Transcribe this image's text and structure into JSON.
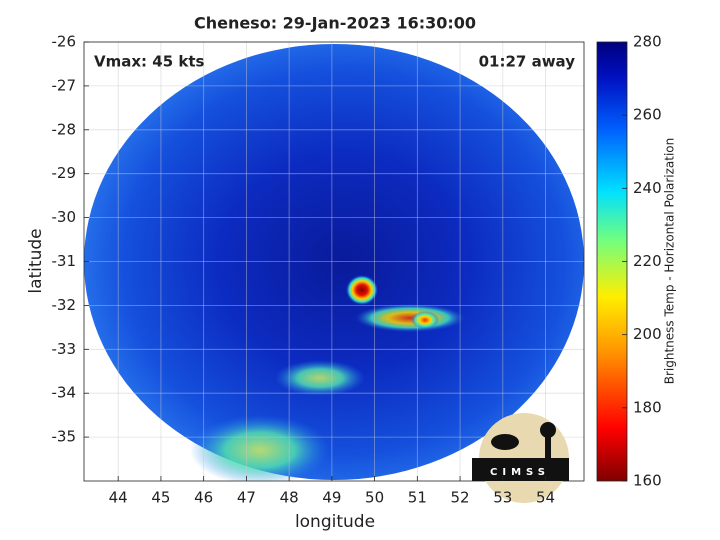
{
  "chart_data": {
    "type": "heatmap",
    "title": "Cheneso: 29-Jan-2023 16:30:00",
    "annotations": [
      "Vmax: 45 kts",
      "01:27 away"
    ],
    "x_label": "longitude",
    "y_label": "latitude",
    "xlim": [
      43.2,
      54.9
    ],
    "xticks": [
      44,
      45,
      46,
      47,
      48,
      49,
      50,
      51,
      52,
      53,
      54
    ],
    "ylim": [
      -36,
      -26
    ],
    "yticks": [
      -35,
      -34,
      -33,
      -32,
      -31,
      -30,
      -29,
      -28,
      -27,
      -26
    ],
    "grid": true,
    "colorbar": {
      "label": "Brightness Temp - Horizontal Polarization",
      "lim": [
        160,
        280
      ],
      "ticks": [
        160,
        180,
        200,
        220,
        240,
        260,
        280
      ]
    },
    "logo": "CIMSS"
  }
}
